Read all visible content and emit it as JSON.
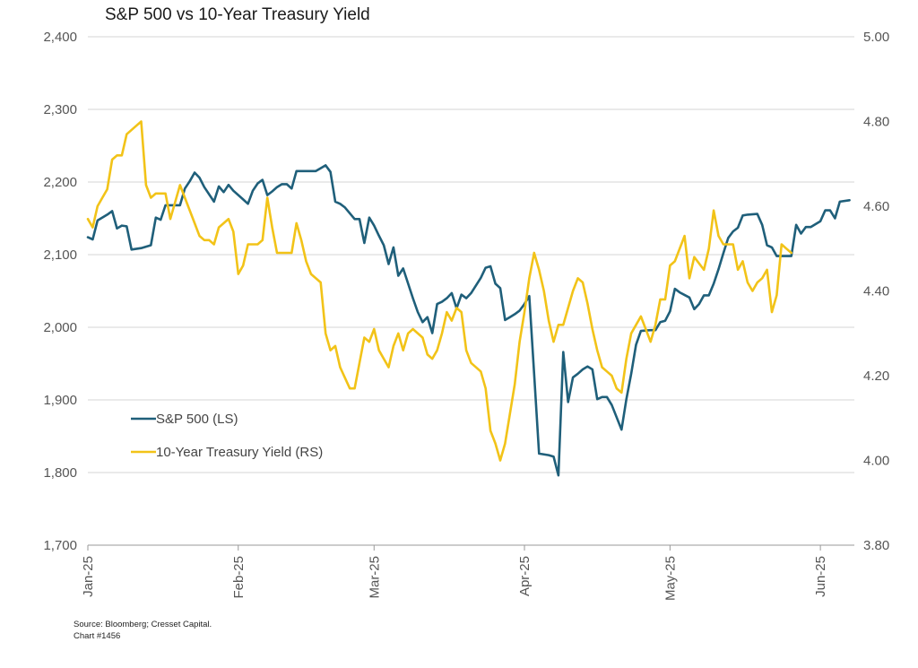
{
  "chart_data": {
    "type": "line",
    "title": "S&P 500 vs 10-Year Treasury Yield",
    "left_axis": {
      "ylim": [
        1700,
        2400
      ],
      "ticks": [
        "1,700",
        "1,800",
        "1,900",
        "2,000",
        "2,100",
        "2,200",
        "2,300",
        "2,400"
      ]
    },
    "right_axis": {
      "ylim": [
        3.8,
        5.0
      ],
      "ticks": [
        "3.80",
        "4.00",
        "4.20",
        "4.40",
        "4.60",
        "4.80",
        "5.00"
      ]
    },
    "x_ticks": [
      {
        "label": "Jan-25",
        "t": 0
      },
      {
        "label": "Feb-25",
        "t": 31
      },
      {
        "label": "Mar-25",
        "t": 59
      },
      {
        "label": "Apr-25",
        "t": 90
      },
      {
        "label": "May-25",
        "t": 120
      },
      {
        "label": "Jun-25",
        "t": 151
      }
    ],
    "x_range": [
      0,
      158
    ],
    "grid": true,
    "legend_position": "lower-left",
    "series": [
      {
        "name": "S&P 500 (LS)",
        "axis": "left",
        "color": "#1f5f7a",
        "points": [
          [
            0,
            2124
          ],
          [
            1,
            2121
          ],
          [
            2,
            2147
          ],
          [
            4,
            2155
          ],
          [
            5,
            2160
          ],
          [
            6,
            2136
          ],
          [
            7,
            2140
          ],
          [
            8,
            2139
          ],
          [
            9,
            2107
          ],
          [
            11,
            2109
          ],
          [
            13,
            2113
          ],
          [
            14,
            2151
          ],
          [
            15,
            2148
          ],
          [
            16,
            2168
          ],
          [
            17,
            2168
          ],
          [
            18,
            2168
          ],
          [
            19,
            2168
          ],
          [
            20,
            2191
          ],
          [
            21,
            2201
          ],
          [
            22,
            2213
          ],
          [
            23,
            2206
          ],
          [
            24,
            2193
          ],
          [
            26,
            2173
          ],
          [
            27,
            2194
          ],
          [
            28,
            2186
          ],
          [
            29,
            2196
          ],
          [
            30,
            2188
          ],
          [
            32,
            2176
          ],
          [
            33,
            2170
          ],
          [
            34,
            2188
          ],
          [
            35,
            2198
          ],
          [
            36,
            2203
          ],
          [
            37,
            2182
          ],
          [
            38,
            2187
          ],
          [
            39,
            2193
          ],
          [
            40,
            2197
          ],
          [
            41,
            2197
          ],
          [
            42,
            2191
          ],
          [
            43,
            2215
          ],
          [
            44,
            2215
          ],
          [
            45,
            2215
          ],
          [
            46,
            2215
          ],
          [
            47,
            2215
          ],
          [
            48,
            2219
          ],
          [
            49,
            2223
          ],
          [
            50,
            2214
          ],
          [
            51,
            2173
          ],
          [
            52,
            2170
          ],
          [
            53,
            2165
          ],
          [
            55,
            2149
          ],
          [
            56,
            2149
          ],
          [
            57,
            2116
          ],
          [
            58,
            2151
          ],
          [
            59,
            2140
          ],
          [
            60,
            2126
          ],
          [
            61,
            2113
          ],
          [
            62,
            2087
          ],
          [
            63,
            2110
          ],
          [
            64,
            2071
          ],
          [
            65,
            2081
          ],
          [
            67,
            2040
          ],
          [
            68,
            2021
          ],
          [
            69,
            2007
          ],
          [
            70,
            2014
          ],
          [
            71,
            1992
          ],
          [
            72,
            2032
          ],
          [
            73,
            2035
          ],
          [
            74,
            2040
          ],
          [
            75,
            2047
          ],
          [
            76,
            2026
          ],
          [
            77,
            2045
          ],
          [
            78,
            2040
          ],
          [
            79,
            2047
          ],
          [
            81,
            2068
          ],
          [
            82,
            2082
          ],
          [
            83,
            2084
          ],
          [
            84,
            2060
          ],
          [
            85,
            2054
          ],
          [
            86,
            2010
          ],
          [
            87,
            2014
          ],
          [
            88,
            2018
          ],
          [
            89,
            2023
          ],
          [
            90,
            2032
          ],
          [
            91,
            2043
          ],
          [
            92,
            1936
          ],
          [
            93,
            1826
          ],
          [
            95,
            1824
          ],
          [
            96,
            1822
          ],
          [
            97,
            1796
          ],
          [
            98,
            1966
          ],
          [
            99,
            1897
          ],
          [
            100,
            1931
          ],
          [
            101,
            1936
          ],
          [
            102,
            1942
          ],
          [
            103,
            1946
          ],
          [
            104,
            1942
          ],
          [
            105,
            1901
          ],
          [
            106,
            1904
          ],
          [
            107,
            1904
          ],
          [
            108,
            1893
          ],
          [
            110,
            1859
          ],
          [
            111,
            1901
          ],
          [
            112,
            1936
          ],
          [
            113,
            1976
          ],
          [
            114,
            1995
          ],
          [
            116,
            1996
          ],
          [
            117,
            1996
          ],
          [
            118,
            2007
          ],
          [
            119,
            2009
          ],
          [
            120,
            2022
          ],
          [
            121,
            2053
          ],
          [
            122,
            2048
          ],
          [
            124,
            2041
          ],
          [
            125,
            2025
          ],
          [
            126,
            2032
          ],
          [
            127,
            2044
          ],
          [
            128,
            2044
          ],
          [
            129,
            2060
          ],
          [
            130,
            2080
          ],
          [
            131,
            2102
          ],
          [
            132,
            2123
          ],
          [
            133,
            2132
          ],
          [
            134,
            2137
          ],
          [
            135,
            2154
          ],
          [
            136,
            2155
          ],
          [
            138,
            2156
          ],
          [
            139,
            2141
          ],
          [
            140,
            2113
          ],
          [
            141,
            2110
          ],
          [
            142,
            2098
          ],
          [
            143,
            2098
          ],
          [
            145,
            2098
          ],
          [
            146,
            2141
          ],
          [
            147,
            2129
          ],
          [
            148,
            2138
          ],
          [
            149,
            2138
          ],
          [
            151,
            2146
          ],
          [
            152,
            2161
          ],
          [
            153,
            2161
          ],
          [
            154,
            2150
          ],
          [
            155,
            2173
          ],
          [
            157,
            2175
          ]
        ]
      },
      {
        "name": "10-Year Treasury Yield (RS)",
        "axis": "right",
        "color": "#f2c318",
        "points": [
          [
            0,
            4.57
          ],
          [
            1,
            4.55
          ],
          [
            2,
            4.6
          ],
          [
            3,
            4.62
          ],
          [
            4,
            4.64
          ],
          [
            5,
            4.71
          ],
          [
            6,
            4.72
          ],
          [
            7,
            4.72
          ],
          [
            8,
            4.77
          ],
          [
            10,
            4.79
          ],
          [
            11,
            4.8
          ],
          [
            12,
            4.65
          ],
          [
            13,
            4.62
          ],
          [
            14,
            4.63
          ],
          [
            15,
            4.63
          ],
          [
            16,
            4.63
          ],
          [
            17,
            4.57
          ],
          [
            18,
            4.61
          ],
          [
            19,
            4.65
          ],
          [
            20,
            4.62
          ],
          [
            22,
            4.56
          ],
          [
            23,
            4.53
          ],
          [
            24,
            4.52
          ],
          [
            25,
            4.52
          ],
          [
            26,
            4.51
          ],
          [
            27,
            4.55
          ],
          [
            29,
            4.57
          ],
          [
            30,
            4.54
          ],
          [
            31,
            4.44
          ],
          [
            32,
            4.46
          ],
          [
            33,
            4.51
          ],
          [
            35,
            4.51
          ],
          [
            36,
            4.52
          ],
          [
            37,
            4.62
          ],
          [
            38,
            4.55
          ],
          [
            39,
            4.49
          ],
          [
            40,
            4.49
          ],
          [
            41,
            4.49
          ],
          [
            42,
            4.49
          ],
          [
            43,
            4.56
          ],
          [
            44,
            4.52
          ],
          [
            45,
            4.47
          ],
          [
            46,
            4.44
          ],
          [
            48,
            4.42
          ],
          [
            49,
            4.3
          ],
          [
            50,
            4.26
          ],
          [
            51,
            4.27
          ],
          [
            52,
            4.22
          ],
          [
            54,
            4.17
          ],
          [
            55,
            4.17
          ],
          [
            56,
            4.23
          ],
          [
            57,
            4.29
          ],
          [
            58,
            4.28
          ],
          [
            59,
            4.31
          ],
          [
            60,
            4.26
          ],
          [
            62,
            4.22
          ],
          [
            63,
            4.27
          ],
          [
            64,
            4.3
          ],
          [
            65,
            4.26
          ],
          [
            66,
            4.3
          ],
          [
            67,
            4.31
          ],
          [
            69,
            4.29
          ],
          [
            70,
            4.25
          ],
          [
            71,
            4.24
          ],
          [
            72,
            4.26
          ],
          [
            73,
            4.3
          ],
          [
            74,
            4.35
          ],
          [
            75,
            4.33
          ],
          [
            76,
            4.36
          ],
          [
            77,
            4.35
          ],
          [
            78,
            4.26
          ],
          [
            79,
            4.23
          ],
          [
            81,
            4.21
          ],
          [
            82,
            4.17
          ],
          [
            83,
            4.07
          ],
          [
            84,
            4.04
          ],
          [
            85,
            4.0
          ],
          [
            86,
            4.04
          ],
          [
            87,
            4.11
          ],
          [
            88,
            4.18
          ],
          [
            89,
            4.28
          ],
          [
            90,
            4.35
          ],
          [
            91,
            4.43
          ],
          [
            92,
            4.49
          ],
          [
            93,
            4.45
          ],
          [
            94,
            4.4
          ],
          [
            95,
            4.33
          ],
          [
            96,
            4.28
          ],
          [
            97,
            4.32
          ],
          [
            98,
            4.32
          ],
          [
            99,
            4.36
          ],
          [
            100,
            4.4
          ],
          [
            101,
            4.43
          ],
          [
            102,
            4.42
          ],
          [
            103,
            4.37
          ],
          [
            104,
            4.31
          ],
          [
            105,
            4.26
          ],
          [
            106,
            4.22
          ],
          [
            107,
            4.21
          ],
          [
            108,
            4.2
          ],
          [
            109,
            4.17
          ],
          [
            110,
            4.16
          ],
          [
            111,
            4.24
          ],
          [
            112,
            4.3
          ],
          [
            113,
            4.32
          ],
          [
            114,
            4.34
          ],
          [
            115,
            4.31
          ],
          [
            116,
            4.28
          ],
          [
            117,
            4.32
          ],
          [
            118,
            4.38
          ],
          [
            119,
            4.38
          ],
          [
            120,
            4.46
          ],
          [
            121,
            4.47
          ],
          [
            123,
            4.53
          ],
          [
            124,
            4.43
          ],
          [
            125,
            4.48
          ],
          [
            127,
            4.45
          ],
          [
            128,
            4.5
          ],
          [
            129,
            4.59
          ],
          [
            130,
            4.53
          ],
          [
            131,
            4.51
          ],
          [
            132,
            4.51
          ],
          [
            133,
            4.51
          ],
          [
            134,
            4.45
          ],
          [
            135,
            4.47
          ],
          [
            136,
            4.42
          ],
          [
            137,
            4.4
          ],
          [
            138,
            4.42
          ],
          [
            139,
            4.43
          ],
          [
            140,
            4.45
          ],
          [
            141,
            4.35
          ],
          [
            142,
            4.39
          ],
          [
            143,
            4.51
          ],
          [
            144,
            4.5
          ],
          [
            145,
            4.49
          ]
        ]
      }
    ]
  },
  "colors": {
    "sp500": "#1f5f7a",
    "yield": "#f2c318",
    "grid": "#d4d4d4",
    "axis": "#999999"
  },
  "footer": {
    "source": "Source: Bloomberg; Cresset Capital.",
    "chart_id": "Chart #1456"
  }
}
